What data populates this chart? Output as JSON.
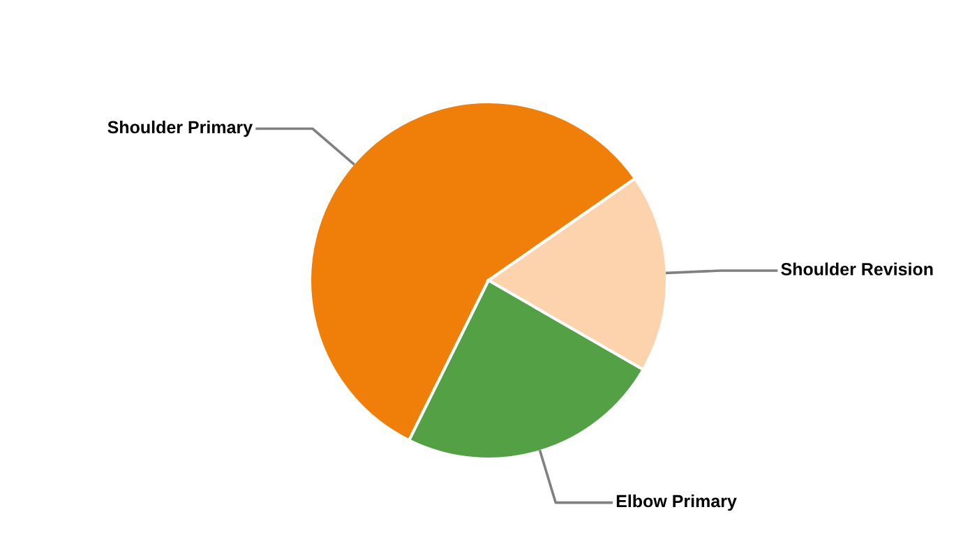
{
  "chart_data": {
    "type": "pie",
    "categories": [
      "Shoulder Primary",
      "Shoulder Revision",
      "Elbow Primary"
    ],
    "values": [
      58,
      18,
      24
    ],
    "colors": [
      "#f07f09",
      "#fcd3ac",
      "#53a045"
    ]
  }
}
